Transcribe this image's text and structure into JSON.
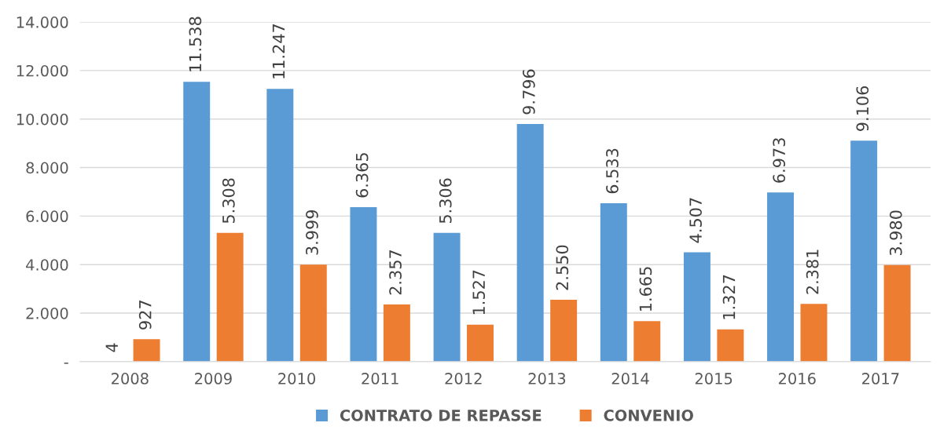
{
  "chart_data": {
    "type": "bar",
    "categories": [
      "2008",
      "2009",
      "2010",
      "2011",
      "2012",
      "2013",
      "2014",
      "2015",
      "2016",
      "2017"
    ],
    "series": [
      {
        "name": "CONTRATO DE REPASSE",
        "color": "#5b9bd5",
        "values": [
          4,
          11538,
          11247,
          6365,
          5306,
          9796,
          6533,
          4507,
          6973,
          9106
        ],
        "value_labels": [
          "4",
          "11.538",
          "11.247",
          "6.365",
          "5.306",
          "9.796",
          "6.533",
          "4.507",
          "6.973",
          "9.106"
        ]
      },
      {
        "name": "CONVENIO",
        "color": "#ed7d31",
        "values": [
          927,
          5308,
          3999,
          2357,
          1527,
          2550,
          1665,
          1327,
          2381,
          3980
        ],
        "value_labels": [
          "927",
          "5.308",
          "3.999",
          "2.357",
          "1.527",
          "2.550",
          "1.665",
          "1.327",
          "2.381",
          "3.980"
        ]
      }
    ],
    "ylim": [
      0,
      14000
    ],
    "yticks": [
      {
        "value": 0,
        "label": "-"
      },
      {
        "value": 2000,
        "label": "2.000"
      },
      {
        "value": 4000,
        "label": "4.000"
      },
      {
        "value": 6000,
        "label": "6.000"
      },
      {
        "value": 8000,
        "label": "8.000"
      },
      {
        "value": 10000,
        "label": "10.000"
      },
      {
        "value": 12000,
        "label": "12.000"
      },
      {
        "value": 14000,
        "label": "14.000"
      }
    ],
    "grid": "y",
    "legend": "bottom"
  }
}
